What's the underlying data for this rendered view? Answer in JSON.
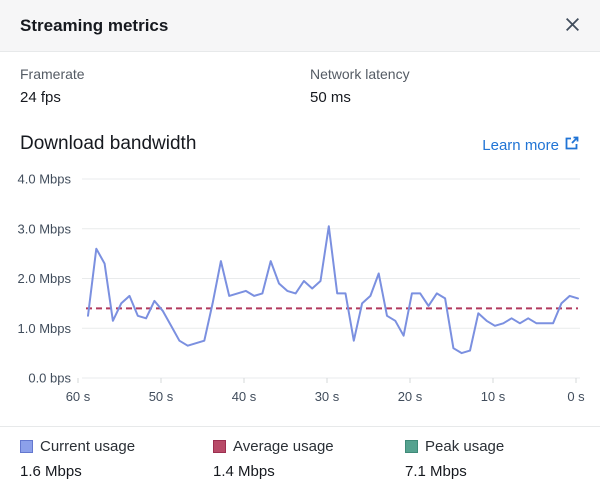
{
  "panel": {
    "title": "Streaming metrics"
  },
  "header": {
    "close_icon": "x-icon"
  },
  "stats": [
    {
      "label": "Framerate",
      "value": "24 fps"
    },
    {
      "label": "Network latency",
      "value": "50 ms"
    }
  ],
  "section": {
    "title": "Download bandwidth",
    "link_label": "Learn more",
    "link_color": "#2074d5",
    "link_icon": "external-link-icon"
  },
  "chart_data": {
    "type": "line",
    "title": "Download bandwidth",
    "xlabel": "",
    "ylabel": "",
    "x_ticks": [
      "60 s",
      "50 s",
      "40 s",
      "30 s",
      "20 s",
      "10 s",
      "0 s"
    ],
    "y_ticks": [
      "4.0 Mbps",
      "3.0 Mbps",
      "2.0 Mbps",
      "1.0 Mbps",
      "0.0 bps"
    ],
    "ylim_mbps": [
      0,
      4
    ],
    "x_range_seconds": [
      60,
      0
    ],
    "grid": true,
    "legend_position": "bottom",
    "grid_color": "#e9ebec",
    "tick_color": "#d4d8da",
    "series": [
      {
        "name": "Current usage",
        "style": "solid-line",
        "color": "#7b90e0",
        "swatch_color": "#8ca0ea",
        "swatch_border": "#6478cf",
        "display_value": "1.6 Mbps",
        "values_mbps": [
          1.25,
          2.6,
          2.3,
          1.15,
          1.5,
          1.65,
          1.25,
          1.2,
          1.55,
          1.35,
          1.05,
          0.75,
          0.65,
          0.7,
          0.75,
          1.5,
          2.35,
          1.65,
          1.7,
          1.75,
          1.65,
          1.7,
          2.35,
          1.9,
          1.75,
          1.7,
          1.95,
          1.8,
          1.95,
          3.05,
          1.7,
          1.7,
          0.75,
          1.5,
          1.65,
          2.1,
          1.25,
          1.15,
          0.85,
          1.7,
          1.7,
          1.45,
          1.7,
          1.6,
          0.6,
          0.5,
          0.55,
          1.3,
          1.15,
          1.05,
          1.1,
          1.2,
          1.1,
          1.2,
          1.1,
          1.1,
          1.1,
          1.5,
          1.65,
          1.6
        ]
      },
      {
        "name": "Average usage",
        "style": "dashed-line",
        "color": "#b23a5e",
        "swatch_color": "#b84a68",
        "swatch_border": "#9c2f50",
        "display_value": "1.4 Mbps",
        "value_mbps": 1.4
      },
      {
        "name": "Peak usage",
        "style": "legend-only",
        "color": "#55a28f",
        "swatch_color": "#55a28f",
        "swatch_border": "#3f8a78",
        "display_value": "7.1 Mbps"
      }
    ]
  }
}
